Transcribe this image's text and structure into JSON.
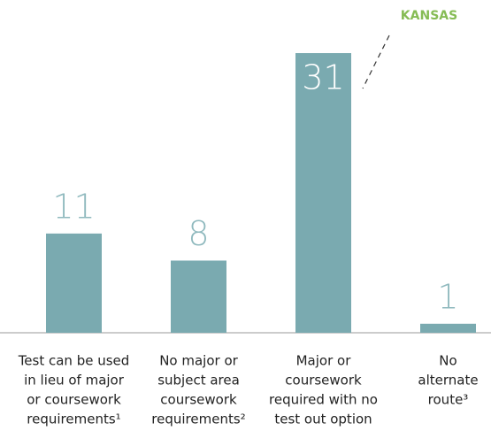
{
  "chart_data": {
    "type": "bar",
    "categories": [
      [
        "Test can be used",
        "in lieu of major",
        "or coursework",
        "requirements¹"
      ],
      [
        "No major or",
        "subject area",
        "coursework",
        "requirements²"
      ],
      [
        "Major or",
        "coursework",
        "required with no",
        "test out option"
      ],
      [
        "No",
        "alternate",
        "route³"
      ]
    ],
    "values": [
      11,
      8,
      31,
      1
    ],
    "color": "#7aaab0",
    "ylim": [
      0,
      31
    ],
    "annotation": {
      "text": "KANSAS",
      "color": "#86bc55"
    }
  }
}
